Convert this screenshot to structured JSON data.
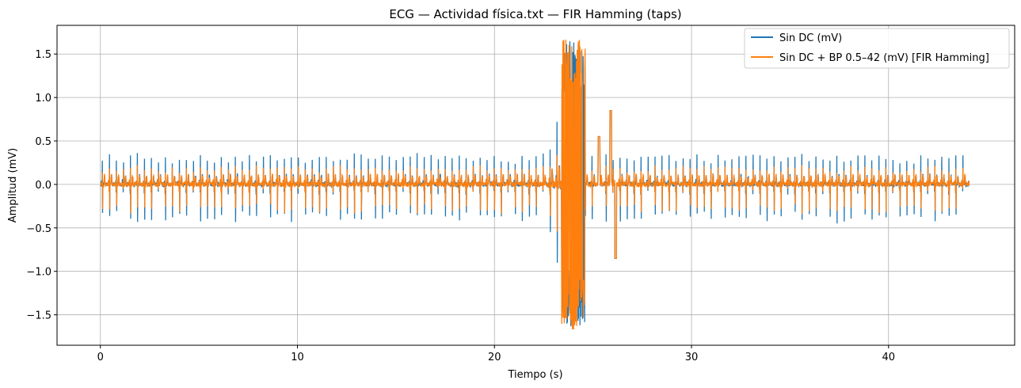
{
  "chart_data": {
    "type": "line",
    "title": "ECG — Actividad física.txt — FIR Hamming (taps)",
    "xlabel": "Tiempo (s)",
    "ylabel": "Amplitud (mV)",
    "xlim": [
      -2.2,
      46.4
    ],
    "ylim": [
      -1.85,
      1.83
    ],
    "xticks": [
      0,
      10,
      20,
      30,
      40
    ],
    "xtick_labels": [
      "0",
      "10",
      "20",
      "30",
      "40"
    ],
    "yticks": [
      -1.5,
      -1.0,
      -0.5,
      0.0,
      0.5,
      1.0,
      1.5
    ],
    "ytick_labels": [
      "−1.5",
      "−1.0",
      "−0.5",
      "0.0",
      "0.5",
      "1.0",
      "1.5"
    ],
    "grid": true,
    "legend_position": "upper right",
    "series": [
      {
        "name": "Sin DC (mV)",
        "color": "#1f77b4",
        "duration_s": 44.1,
        "beat_peak_mV": 0.3,
        "beat_trough_mV": -0.38,
        "artifact_window_s": [
          23.4,
          24.6
        ],
        "artifact_range_mV": [
          -1.65,
          1.62
        ]
      },
      {
        "name": "Sin DC + BP 0.5–42 (mV) [FIR Hamming]",
        "color": "#ff7f0e",
        "duration_s": 44.1,
        "beat_peak_mV": 0.18,
        "beat_trough_mV": -0.28,
        "artifact_window_s": [
          23.4,
          24.6
        ],
        "artifact_range_mV": [
          -1.7,
          1.68
        ]
      }
    ]
  }
}
